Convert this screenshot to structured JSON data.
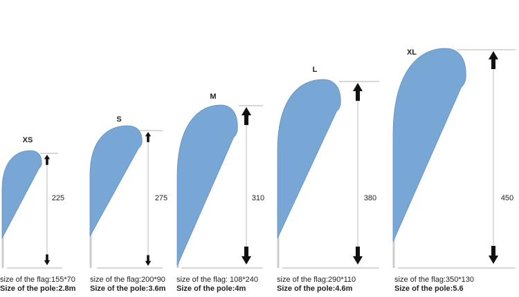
{
  "flags": [
    {
      "label": "XS",
      "height": 225,
      "flag_size": "size of the flag:155*70",
      "pole_size": "Size of the pole:2.8m"
    },
    {
      "label": "S",
      "height": 275,
      "flag_size": "size of the flag:200*90",
      "pole_size": "Size of the pole:3.6m"
    },
    {
      "label": "M",
      "height": 310,
      "flag_size": "size of the flag: 108*240",
      "pole_size": "Size of the pole:4m"
    },
    {
      "label": "L",
      "height": 380,
      "flag_size": "size of the flag:290*110",
      "pole_size": "Size of the pole:4.6m"
    },
    {
      "label": "XL",
      "height": 450,
      "flag_size": "size of the flag:350*130",
      "pole_size": "Size of the pole:5.6"
    }
  ]
}
